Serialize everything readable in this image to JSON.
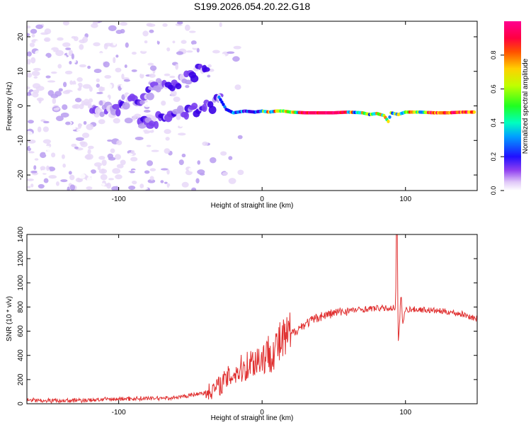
{
  "title": "S199.2026.054.20.22.G18",
  "chart_data": [
    {
      "type": "heatmap",
      "xlabel": "Height of straight line (km)",
      "ylabel": "Frequency (Hz)",
      "xlim": [
        -164,
        150
      ],
      "ylim": [
        -24.5,
        24.5
      ],
      "x_ticks": [
        -100,
        0,
        100
      ],
      "y_ticks": [
        -20,
        -10,
        0,
        10,
        20
      ],
      "colorbar": {
        "label": "Normalized spectral amplitude",
        "range": [
          0,
          1
        ],
        "ticks": [
          "0.0",
          "0.2",
          "0.4",
          "0.6",
          "0.8"
        ],
        "colors": [
          "#ffffff",
          "#e8d8f8",
          "#b89cf0",
          "#7a3ef0",
          "#3a00e6",
          "#0010ff",
          "#0080ff",
          "#00e0ff",
          "#00ff80",
          "#40ff00",
          "#c0ff00",
          "#ffe000",
          "#ff8000",
          "#ff2000",
          "#ff0060",
          "#ff0090"
        ]
      },
      "ridge": {
        "main_frequency_hz": -1.8,
        "points": [
          [
            -30,
            2.5
          ],
          [
            -25,
            -1.0
          ],
          [
            -20,
            -2.0
          ],
          [
            -12,
            -1.5
          ],
          [
            -5,
            -1.8
          ],
          [
            0,
            -1.5
          ],
          [
            5,
            -1.8
          ],
          [
            10,
            -1.5
          ],
          [
            15,
            -1.5
          ],
          [
            20,
            -1.8
          ],
          [
            30,
            -2.0
          ],
          [
            40,
            -2.0
          ],
          [
            50,
            -2.0
          ],
          [
            60,
            -1.8
          ],
          [
            70,
            -2.0
          ],
          [
            75,
            -2.5
          ],
          [
            80,
            -2.2
          ],
          [
            85,
            -2.8
          ],
          [
            88,
            -4.5
          ],
          [
            90,
            -2.0
          ],
          [
            95,
            -2.5
          ],
          [
            100,
            -1.8
          ],
          [
            110,
            -1.8
          ],
          [
            120,
            -2.0
          ],
          [
            130,
            -2.0
          ],
          [
            140,
            -1.8
          ],
          [
            148,
            -1.8
          ]
        ],
        "upper_branch": [
          [
            -120,
            -1.5
          ],
          [
            -100,
            -0.5
          ],
          [
            -85,
            2.0
          ],
          [
            -75,
            5.0
          ],
          [
            -60,
            6.5
          ],
          [
            -50,
            8.5
          ],
          [
            -38,
            12.0
          ]
        ],
        "lower_branch": [
          [
            -85,
            -5.0
          ],
          [
            -65,
            -3.5
          ],
          [
            -50,
            -1.5
          ],
          [
            -35,
            0.0
          ],
          [
            -28,
            3.0
          ]
        ]
      }
    },
    {
      "type": "line",
      "xlabel": "Height of straight line (km)",
      "ylabel": "SNR (10 * v/v)",
      "xlim": [
        -164,
        150
      ],
      "ylim": [
        0,
        1400
      ],
      "x_ticks": [
        -100,
        0,
        100
      ],
      "y_ticks": [
        0,
        200,
        400,
        600,
        800,
        1000,
        1200,
        1400
      ],
      "series": [
        {
          "name": "SNR",
          "color": "#e03030",
          "x": [
            -164,
            -140,
            -120,
            -100,
            -80,
            -60,
            -50,
            -40,
            -35,
            -30,
            -25,
            -20,
            -15,
            -10,
            -5,
            0,
            5,
            10,
            15,
            20,
            25,
            30,
            35,
            40,
            50,
            60,
            70,
            80,
            90,
            93,
            94,
            95,
            96,
            97,
            98,
            100,
            110,
            120,
            130,
            140,
            150
          ],
          "y": [
            30,
            25,
            30,
            40,
            45,
            50,
            70,
            90,
            110,
            150,
            200,
            250,
            280,
            320,
            360,
            380,
            420,
            470,
            520,
            570,
            620,
            660,
            690,
            720,
            750,
            770,
            780,
            790,
            790,
            800,
            1400,
            500,
            700,
            930,
            650,
            780,
            780,
            770,
            760,
            740,
            700
          ]
        }
      ],
      "spike": {
        "x": 94,
        "y": 1400
      }
    }
  ]
}
